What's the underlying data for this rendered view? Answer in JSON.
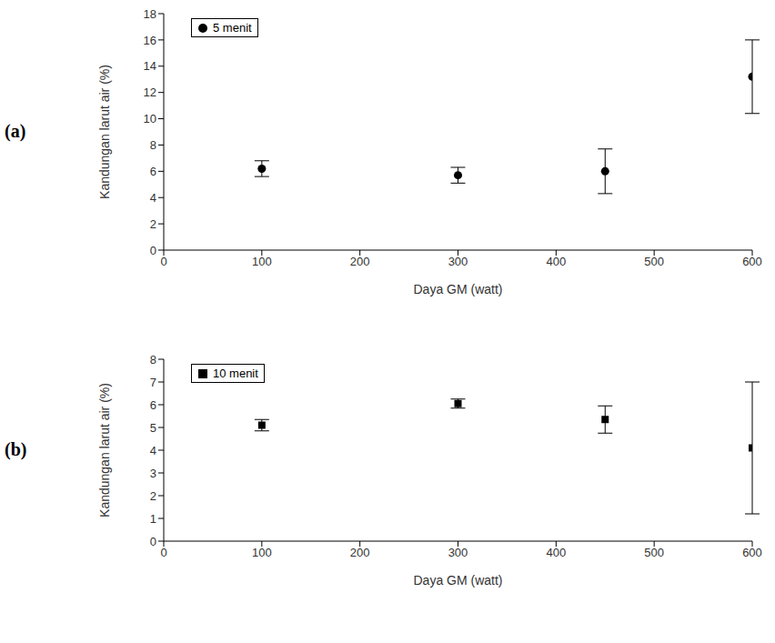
{
  "chart_data": [
    {
      "type": "scatter",
      "panel_label": "(a)",
      "x_label": "Daya GM (watt)",
      "y_label": "Kandungan larut air (%)",
      "xlim": [
        0,
        600
      ],
      "xticks": [
        0,
        100,
        200,
        300,
        400,
        500,
        600
      ],
      "ylim": [
        0,
        18
      ],
      "yticks": [
        0,
        2,
        4,
        6,
        8,
        10,
        12,
        14,
        16,
        18
      ],
      "legend": "upper left",
      "series": [
        {
          "name": "5 menit",
          "color": "#000000",
          "marker": "circle",
          "x": [
            100,
            300,
            450,
            600
          ],
          "values": [
            6.2,
            5.7,
            6.0,
            13.2
          ],
          "errors": [
            0.6,
            0.6,
            1.7,
            2.8
          ]
        }
      ]
    },
    {
      "type": "scatter",
      "panel_label": "(b)",
      "x_label": "Daya GM (watt)",
      "y_label": "Kandungan larut air (%)",
      "xlim": [
        0,
        600
      ],
      "xticks": [
        0,
        100,
        200,
        300,
        400,
        500,
        600
      ],
      "ylim": [
        0,
        8
      ],
      "yticks": [
        0,
        1,
        2,
        3,
        4,
        5,
        6,
        7,
        8
      ],
      "legend": "upper left",
      "series": [
        {
          "name": "10 menit",
          "color": "#000000",
          "marker": "square",
          "x": [
            100,
            300,
            450,
            600
          ],
          "values": [
            5.1,
            6.05,
            5.35,
            4.1
          ],
          "errors": [
            0.25,
            0.2,
            0.6,
            2.9
          ]
        }
      ]
    }
  ]
}
